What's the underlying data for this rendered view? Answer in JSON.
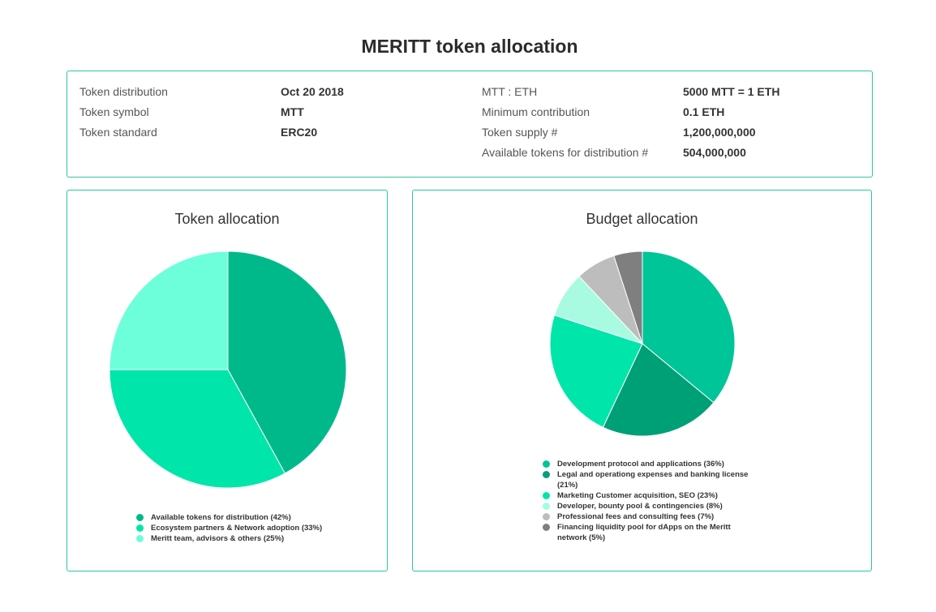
{
  "page": {
    "title": "MERITT token allocation"
  },
  "info": {
    "left": [
      {
        "label": "Token distribution",
        "value": "Oct 20 2018"
      },
      {
        "label": "Token symbol",
        "value": "MTT"
      },
      {
        "label": "Token standard",
        "value": "ERC20"
      }
    ],
    "right": [
      {
        "label": "MTT : ETH",
        "value": "5000 MTT = 1 ETH"
      },
      {
        "label": "Minimum contribution",
        "value": "0.1 ETH"
      },
      {
        "label": "Token supply #",
        "value": "1,200,000,000"
      },
      {
        "label": "Available tokens for distribution #",
        "value": "504,000,000"
      }
    ]
  },
  "chart_data": [
    {
      "type": "pie",
      "title": "Token allocation",
      "labels": [
        "Available tokens for distribution (42%)",
        "Ecosystem partners & Network adoption (33%)",
        "Meritt team, advisors & others (25%)"
      ],
      "values": [
        42,
        33,
        25
      ],
      "colors": [
        "#00b98b",
        "#00e5aa",
        "#6dffd9"
      ],
      "legend_position": "bottom"
    },
    {
      "type": "pie",
      "title": "Budget allocation",
      "labels": [
        "Development protocol and applications (36%)",
        "Legal and operationg expenses and banking license (21%)",
        "Marketing Customer acquisition, SEO (23%)",
        "Developer, bounty pool & contingencies (8%)",
        "Professional fees and consulting fees (7%)",
        "Financing liquidity pool for dApps on the Meritt network (5%)"
      ],
      "values": [
        36,
        21,
        23,
        8,
        7,
        5
      ],
      "colors": [
        "#00c598",
        "#00a077",
        "#00e5aa",
        "#a8fbe0",
        "#bdbdbd",
        "#7f7f7f"
      ],
      "legend_position": "bottom"
    }
  ]
}
